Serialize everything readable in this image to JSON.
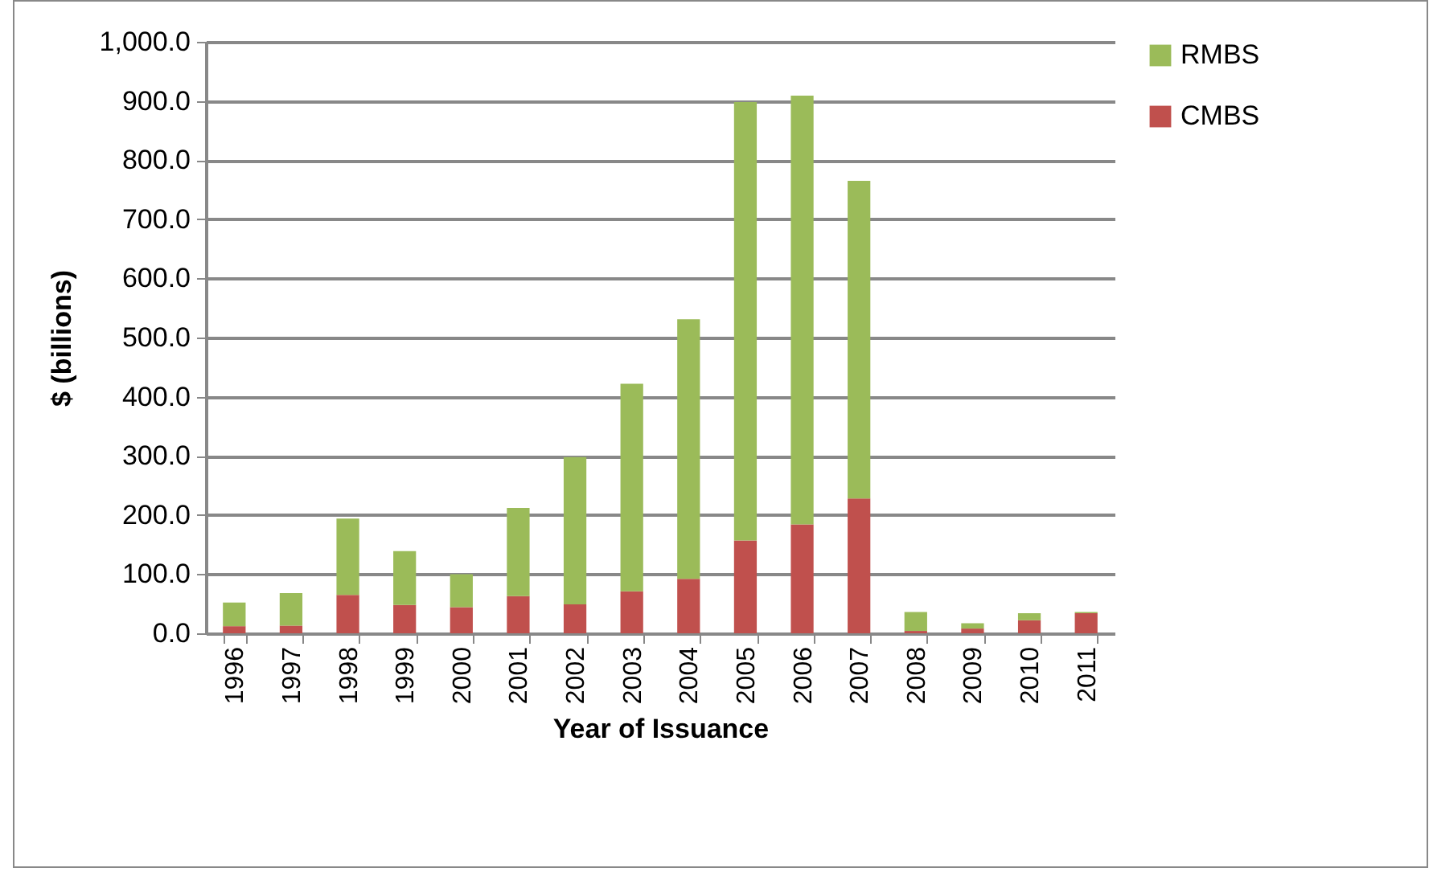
{
  "chart_data": {
    "type": "bar",
    "stacked": true,
    "xlabel": "Year of Issuance",
    "ylabel": "$ (billions)",
    "categories": [
      "1996",
      "1997",
      "1998",
      "1999",
      "2000",
      "2001",
      "2002",
      "2003",
      "2004",
      "2005",
      "2006",
      "2007",
      "2008",
      "2009",
      "2010",
      "2011"
    ],
    "series": [
      {
        "name": "CMBS",
        "color": "#c0504d",
        "values": [
          12,
          13,
          65,
          48,
          44,
          63,
          49,
          71,
          92,
          157,
          184,
          228,
          4,
          8,
          22,
          34
        ]
      },
      {
        "name": "RMBS",
        "color": "#9bbb59",
        "values": [
          40,
          55,
          129,
          91,
          56,
          149,
          249,
          351,
          439,
          741,
          725,
          537,
          32,
          9,
          12,
          2
        ]
      }
    ],
    "ylim": [
      0,
      1000
    ],
    "yticks": [
      {
        "value": 0,
        "label": "0.0"
      },
      {
        "value": 100,
        "label": "100.0"
      },
      {
        "value": 200,
        "label": "200.0"
      },
      {
        "value": 300,
        "label": "300.0"
      },
      {
        "value": 400,
        "label": "400.0"
      },
      {
        "value": 500,
        "label": "500.0"
      },
      {
        "value": 600,
        "label": "600.0"
      },
      {
        "value": 700,
        "label": "700.0"
      },
      {
        "value": 800,
        "label": "800.0"
      },
      {
        "value": 900,
        "label": "900.0"
      },
      {
        "value": 1000,
        "label": "1,000.0"
      }
    ],
    "grid": "y",
    "legend": "right"
  }
}
